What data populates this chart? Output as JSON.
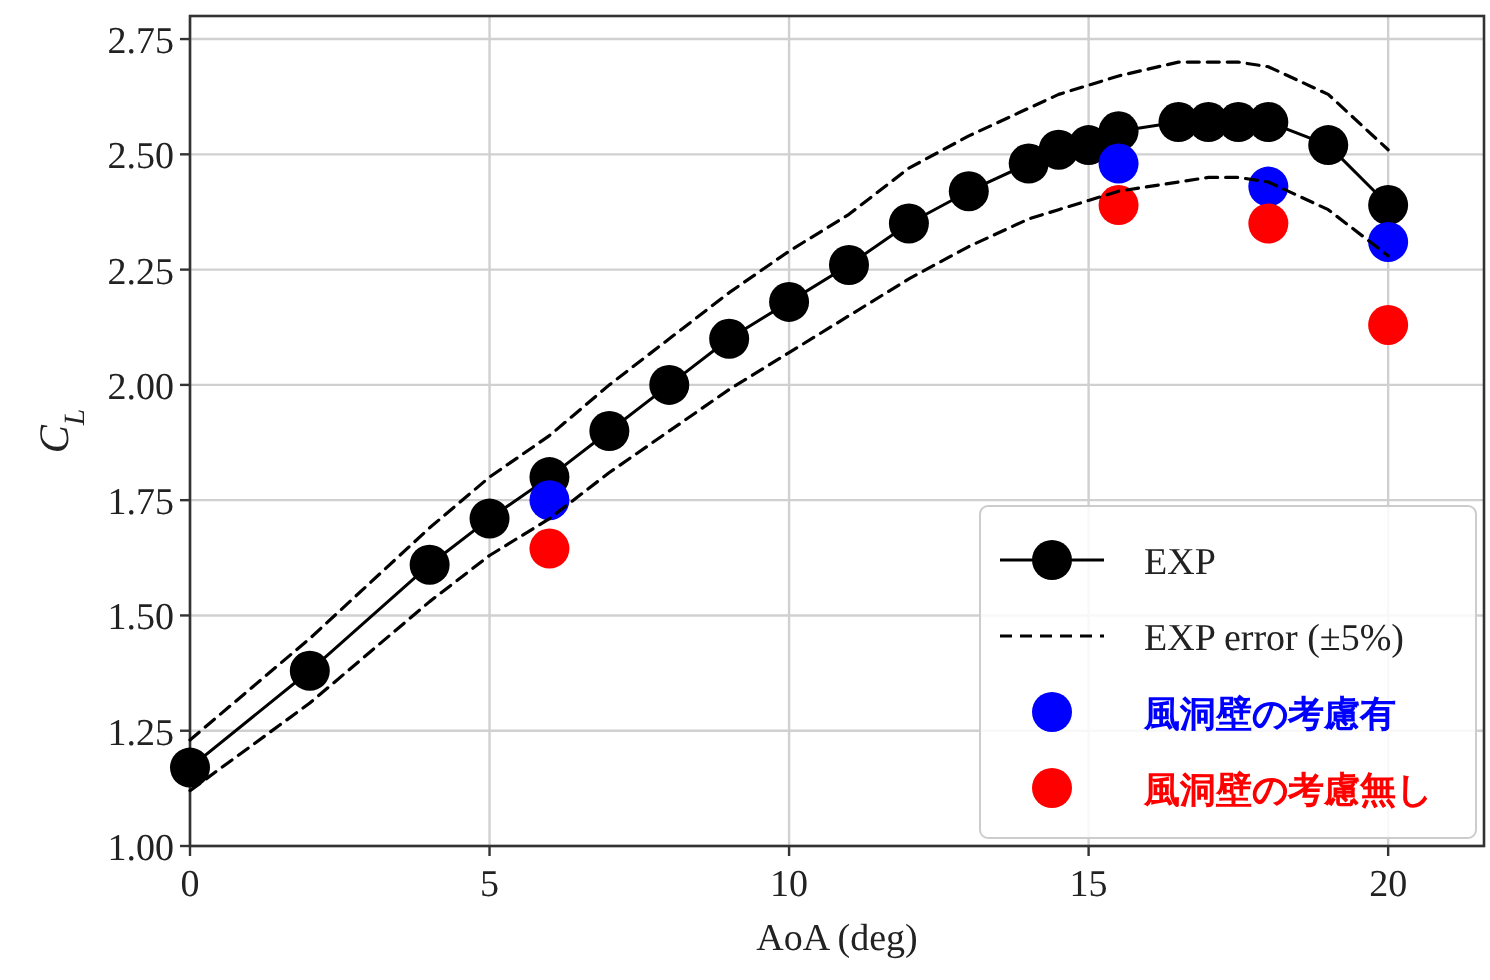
{
  "chart_data": {
    "type": "line",
    "xlabel": "AoA (deg)",
    "ylabel": "C$_{L}$",
    "xlim": [
      0,
      21.6
    ],
    "ylim": [
      1,
      2.8
    ],
    "xticks": [
      0,
      5,
      10,
      15,
      20
    ],
    "yticks": [
      {
        "value": 1,
        "label": "1.00"
      },
      {
        "value": 1.25,
        "label": "1.25"
      },
      {
        "value": 1.5,
        "label": "1.50"
      },
      {
        "value": 1.75,
        "label": "1.75"
      },
      {
        "value": 2,
        "label": "2.00"
      },
      {
        "value": 2.25,
        "label": "2.25"
      },
      {
        "value": 2.5,
        "label": "2.50"
      },
      {
        "value": 2.75,
        "label": "2.75"
      }
    ],
    "grid": true,
    "legend": "bottom right",
    "series": [
      {
        "name": "EXP",
        "color": "#000000",
        "marker": "circle",
        "line_style": "solid",
        "x": [
          0,
          2,
          4,
          5,
          6,
          7,
          8,
          9,
          10,
          11,
          12,
          13,
          14,
          14.5,
          15,
          15.5,
          16.5,
          17,
          17.5,
          18,
          19,
          20
        ],
        "values": [
          1.17,
          1.38,
          1.61,
          1.71,
          1.8,
          1.9,
          2.0,
          2.1,
          2.18,
          2.26,
          2.35,
          2.42,
          2.48,
          2.51,
          2.52,
          2.55,
          2.57,
          2.57,
          2.57,
          2.57,
          2.52,
          2.39
        ]
      },
      {
        "name": "EXP error (±5%)",
        "color": "#000000",
        "marker": "none",
        "line_style": "dashed",
        "x": [
          0,
          2,
          4,
          5,
          6,
          7,
          8,
          9,
          10,
          11,
          12,
          13,
          14,
          14.5,
          15,
          15.5,
          16.5,
          17,
          17.5,
          18,
          19,
          20
        ],
        "values": [
          1.23,
          1.45,
          1.69,
          1.8,
          1.89,
          2.0,
          2.1,
          2.2,
          2.29,
          2.37,
          2.47,
          2.54,
          2.6,
          2.63,
          2.65,
          2.67,
          2.7,
          2.7,
          2.7,
          2.69,
          2.63,
          2.51
        ]
      },
      {
        "color": "#000000",
        "marker": "none",
        "line_style": "dashed",
        "x": [
          0,
          2,
          4,
          5,
          6,
          7,
          8,
          9,
          10,
          11,
          12,
          13,
          14,
          14.5,
          15,
          15.5,
          16.5,
          17,
          17.5,
          18,
          19,
          20
        ],
        "values": [
          1.12,
          1.31,
          1.53,
          1.63,
          1.71,
          1.81,
          1.9,
          1.99,
          2.07,
          2.15,
          2.23,
          2.3,
          2.36,
          2.38,
          2.4,
          2.42,
          2.44,
          2.45,
          2.45,
          2.44,
          2.38,
          2.28
        ]
      },
      {
        "name": "風洞壁の考慮有",
        "type": "scatter",
        "color": "#0000ff",
        "marker": "circle",
        "x": [
          6,
          15.5,
          18,
          20
        ],
        "values": [
          1.75,
          2.48,
          2.43,
          2.31
        ]
      },
      {
        "name": "風洞壁の考慮無し",
        "type": "scatter",
        "color": "#ff0000",
        "marker": "circle",
        "x": [
          6,
          15.5,
          18,
          20
        ],
        "values": [
          1.645,
          2.39,
          2.35,
          2.13
        ]
      }
    ]
  }
}
